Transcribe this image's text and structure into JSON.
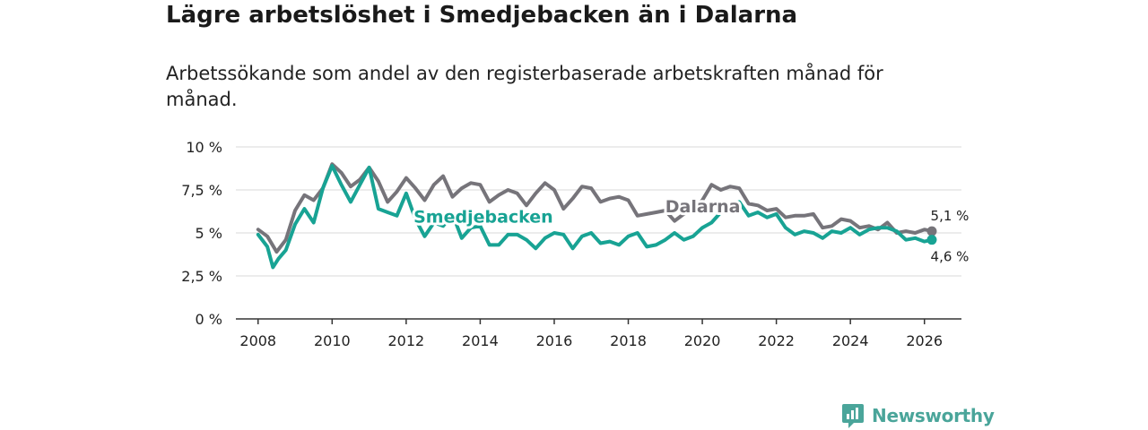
{
  "header": {
    "title": "Lägre arbetslöshet i Smedjebacken än i Dalarna",
    "subtitle": "Arbetssökande som andel av den registerbaserade arbetskraften månad för månad."
  },
  "brand": {
    "name": "Newsworthy",
    "icon": "newsworthy-logo-icon",
    "color": "#4aa59a"
  },
  "colors": {
    "dalarna": "#76747a",
    "smedjebacken": "#18a394",
    "grid": "#d9d9d9",
    "axis": "#333333"
  },
  "chart_data": {
    "type": "line",
    "title": "Lägre arbetslöshet i Smedjebacken än i Dalarna",
    "xlabel": "",
    "ylabel": "",
    "xlim": [
      2007.4,
      2027.0
    ],
    "ylim": [
      0,
      10
    ],
    "y_ticks": [
      0,
      2.5,
      5,
      7.5,
      10
    ],
    "y_tick_labels": [
      "0 %",
      "2,5 %",
      "5 %",
      "7,5 %",
      "10 %"
    ],
    "x_ticks": [
      2008,
      2010,
      2012,
      2014,
      2016,
      2018,
      2020,
      2022,
      2024,
      2026
    ],
    "x_tick_labels": [
      "2008",
      "2010",
      "2012",
      "2014",
      "2016",
      "2018",
      "2020",
      "2022",
      "2024",
      "2026"
    ],
    "grid": true,
    "series": [
      {
        "name": "Dalarna",
        "label": "Dalarna",
        "end_label": "5,1 %",
        "x": [
          2008.0,
          2008.25,
          2008.5,
          2008.75,
          2009.0,
          2009.25,
          2009.5,
          2009.75,
          2010.0,
          2010.25,
          2010.5,
          2010.75,
          2011.0,
          2011.25,
          2011.5,
          2011.75,
          2012.0,
          2012.25,
          2012.5,
          2012.75,
          2013.0,
          2013.25,
          2013.5,
          2013.75,
          2014.0,
          2014.25,
          2014.5,
          2014.75,
          2015.0,
          2015.25,
          2015.5,
          2015.75,
          2016.0,
          2016.25,
          2016.5,
          2016.75,
          2017.0,
          2017.25,
          2017.5,
          2017.75,
          2018.0,
          2018.25,
          2018.5,
          2018.75,
          2019.0,
          2019.25,
          2019.5,
          2019.75,
          2020.0,
          2020.25,
          2020.5,
          2020.75,
          2021.0,
          2021.25,
          2021.5,
          2021.75,
          2022.0,
          2022.25,
          2022.5,
          2022.75,
          2023.0,
          2023.25,
          2023.5,
          2023.75,
          2024.0,
          2024.25,
          2024.5,
          2024.75,
          2025.0,
          2025.25,
          2025.5,
          2025.75,
          2026.0,
          2026.2
        ],
        "values": [
          5.2,
          4.8,
          3.9,
          4.6,
          6.3,
          7.2,
          6.9,
          7.6,
          9.0,
          8.5,
          7.7,
          8.1,
          8.8,
          8.0,
          6.8,
          7.4,
          8.2,
          7.6,
          6.9,
          7.8,
          8.3,
          7.1,
          7.6,
          7.9,
          7.8,
          6.8,
          7.2,
          7.5,
          7.3,
          6.6,
          7.3,
          7.9,
          7.5,
          6.4,
          7.0,
          7.7,
          7.6,
          6.8,
          7.0,
          7.1,
          6.9,
          6.0,
          6.1,
          6.2,
          6.3,
          5.7,
          6.1,
          6.4,
          6.9,
          7.8,
          7.5,
          7.7,
          7.6,
          6.7,
          6.6,
          6.3,
          6.4,
          5.9,
          6.0,
          6.0,
          6.1,
          5.3,
          5.4,
          5.8,
          5.7,
          5.3,
          5.4,
          5.2,
          5.6,
          5.0,
          5.1,
          5.0,
          5.2,
          5.1
        ]
      },
      {
        "name": "Smedjebacken",
        "label": "Smedjebacken",
        "end_label": "4,6 %",
        "x": [
          2008.0,
          2008.25,
          2008.4,
          2008.55,
          2008.75,
          2009.0,
          2009.25,
          2009.5,
          2009.75,
          2010.0,
          2010.25,
          2010.5,
          2010.75,
          2011.0,
          2011.25,
          2011.5,
          2011.75,
          2012.0,
          2012.25,
          2012.5,
          2012.75,
          2013.0,
          2013.25,
          2013.5,
          2013.75,
          2014.0,
          2014.25,
          2014.5,
          2014.75,
          2015.0,
          2015.25,
          2015.5,
          2015.75,
          2016.0,
          2016.25,
          2016.5,
          2016.75,
          2017.0,
          2017.25,
          2017.5,
          2017.75,
          2018.0,
          2018.25,
          2018.5,
          2018.75,
          2019.0,
          2019.25,
          2019.5,
          2019.75,
          2020.0,
          2020.25,
          2020.5,
          2020.75,
          2021.0,
          2021.25,
          2021.5,
          2021.75,
          2022.0,
          2022.25,
          2022.5,
          2022.75,
          2023.0,
          2023.25,
          2023.5,
          2023.75,
          2024.0,
          2024.25,
          2024.5,
          2024.75,
          2025.0,
          2025.25,
          2025.5,
          2025.75,
          2026.0,
          2026.2
        ],
        "values": [
          4.9,
          4.2,
          3.0,
          3.5,
          4.0,
          5.5,
          6.4,
          5.6,
          7.6,
          8.9,
          7.8,
          6.8,
          7.8,
          8.8,
          6.4,
          6.2,
          6.0,
          7.3,
          5.8,
          4.8,
          5.6,
          5.4,
          6.1,
          4.7,
          5.3,
          5.4,
          4.3,
          4.3,
          4.9,
          4.9,
          4.6,
          4.1,
          4.7,
          5.0,
          4.9,
          4.1,
          4.8,
          5.0,
          4.4,
          4.5,
          4.3,
          4.8,
          5.0,
          4.2,
          4.3,
          4.6,
          5.0,
          4.6,
          4.8,
          5.3,
          5.6,
          6.2,
          6.6,
          6.8,
          6.0,
          6.2,
          5.9,
          6.1,
          5.3,
          4.9,
          5.1,
          5.0,
          4.7,
          5.1,
          5.0,
          5.3,
          4.9,
          5.2,
          5.3,
          5.3,
          5.1,
          4.6,
          4.7,
          4.5,
          4.6
        ]
      }
    ]
  }
}
